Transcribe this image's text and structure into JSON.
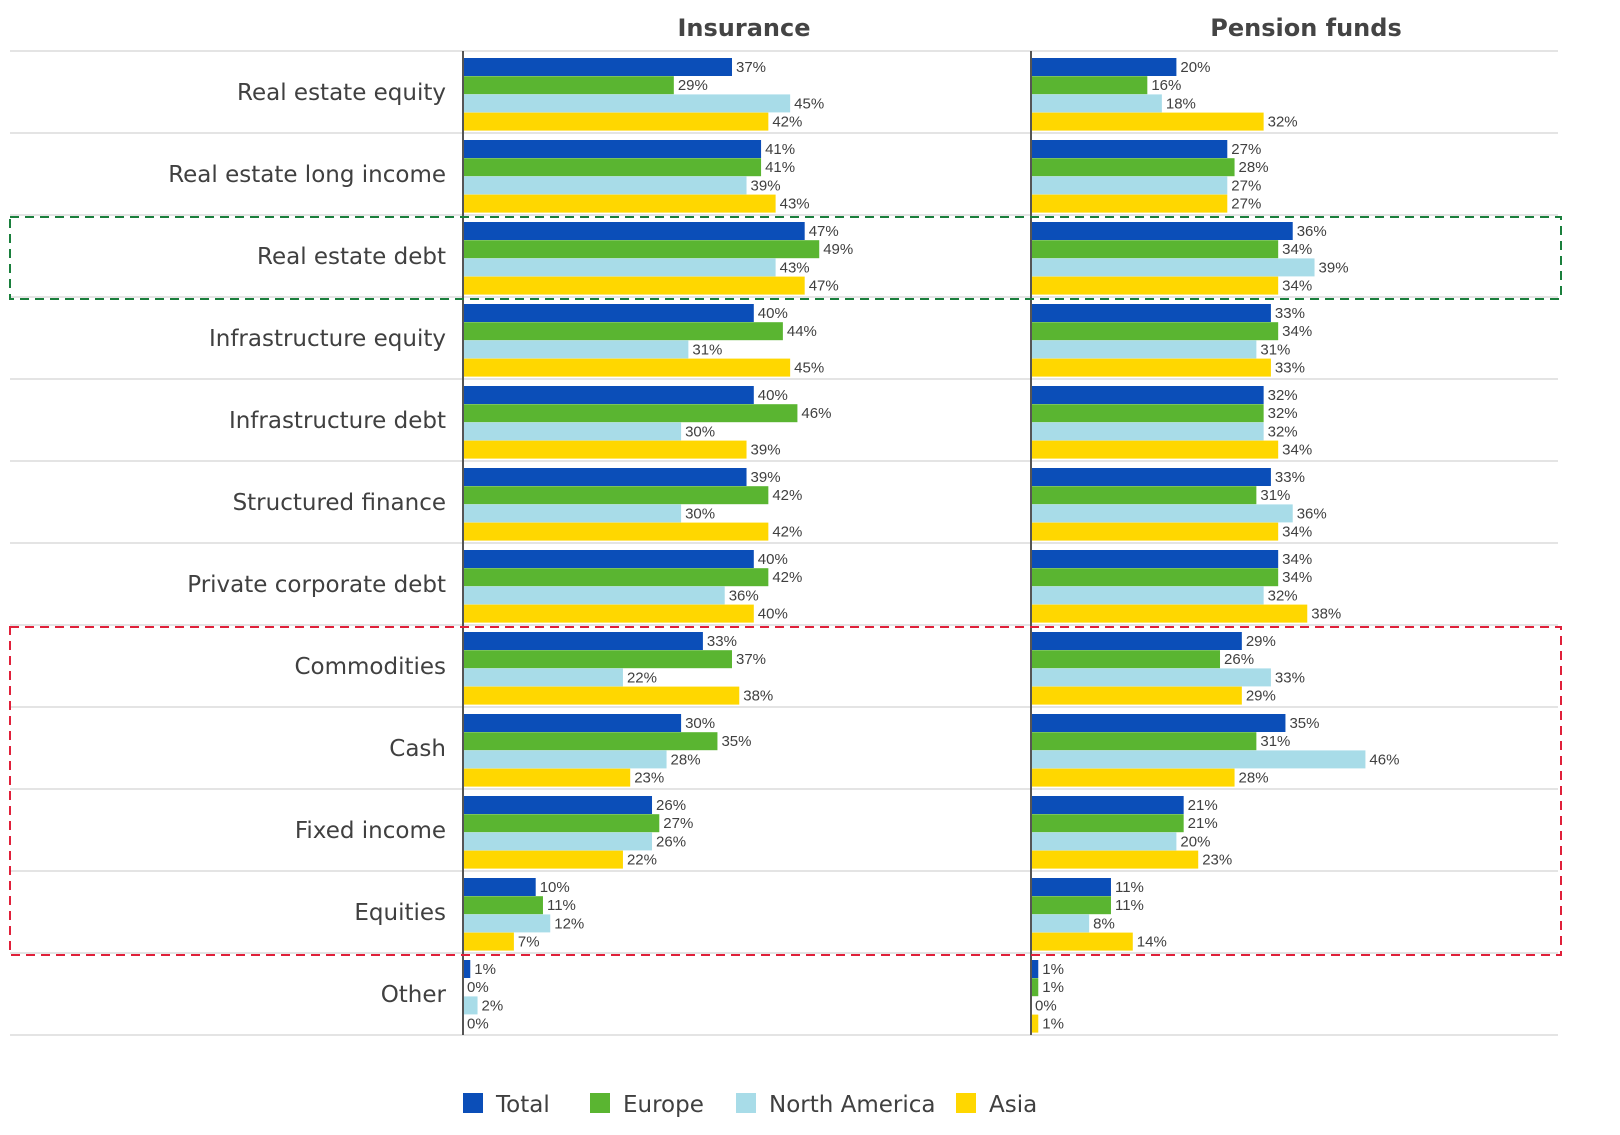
{
  "chart_data": {
    "type": "bar",
    "orientation": "horizontal",
    "panels": [
      "Insurance",
      "Pension funds"
    ],
    "categories": [
      "Real estate equity",
      "Real estate long income",
      "Real estate debt",
      "Infrastructure equity",
      "Infrastructure debt",
      "Structured finance",
      "Private corporate debt",
      "Commodities",
      "Cash",
      "Fixed income",
      "Equities",
      "Other"
    ],
    "series": [
      {
        "name": "Total",
        "color": "#0B4EB8",
        "insurance": [
          37,
          41,
          47,
          40,
          40,
          39,
          40,
          33,
          30,
          26,
          10,
          1
        ],
        "pension": [
          20,
          27,
          36,
          33,
          32,
          33,
          34,
          29,
          35,
          21,
          11,
          1
        ]
      },
      {
        "name": "Europe",
        "color": "#5AB531",
        "insurance": [
          29,
          41,
          49,
          44,
          46,
          42,
          42,
          37,
          35,
          27,
          11,
          0
        ],
        "pension": [
          16,
          28,
          34,
          34,
          32,
          31,
          34,
          26,
          31,
          21,
          11,
          1
        ]
      },
      {
        "name": "North America",
        "color": "#A8DCE8",
        "insurance": [
          45,
          39,
          43,
          31,
          30,
          30,
          36,
          22,
          28,
          26,
          12,
          2
        ],
        "pension": [
          18,
          27,
          39,
          31,
          32,
          36,
          32,
          33,
          46,
          20,
          8,
          0
        ]
      },
      {
        "name": "Asia",
        "color": "#FFD700",
        "insurance": [
          42,
          43,
          47,
          45,
          39,
          42,
          40,
          38,
          23,
          22,
          7,
          0
        ],
        "pension": [
          32,
          27,
          34,
          33,
          34,
          34,
          38,
          29,
          28,
          23,
          14,
          1
        ]
      }
    ],
    "value_suffix": "%",
    "highlights": [
      {
        "style": "green-dashed",
        "categories": [
          "Real estate debt"
        ],
        "color": "#1A7F3C"
      },
      {
        "style": "red-dashed",
        "categories": [
          "Commodities",
          "Cash",
          "Fixed income",
          "Equities"
        ],
        "color": "#E0203A"
      }
    ],
    "legend_position": "bottom"
  }
}
